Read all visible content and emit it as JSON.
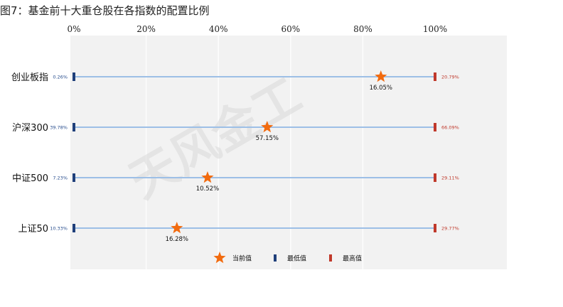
{
  "title": "图7：基金前十大重仓股在各指数的配置比例",
  "watermark": "天风金工",
  "chart_data": {
    "type": "range-dot",
    "x_axis": {
      "min": 0,
      "max": 100,
      "ticks": [
        0,
        20,
        40,
        60,
        80,
        100
      ],
      "tick_labels": [
        "0%",
        "20%",
        "40%",
        "60%",
        "80%",
        "100%"
      ],
      "position": "top",
      "grid": true
    },
    "categories": [
      "创业板指",
      "沪深300",
      "中证500",
      "上证50"
    ],
    "series": [
      {
        "name": "当前值",
        "marker": "star",
        "color": "#f26b0f",
        "values": [
          85,
          53.5,
          37,
          28.5
        ]
      },
      {
        "name": "最低值",
        "marker": "bar",
        "color": "#1f3f7a",
        "values": [
          0,
          0,
          0,
          0
        ]
      },
      {
        "name": "最高值",
        "marker": "bar",
        "color": "#c0392b",
        "values": [
          100,
          100,
          100,
          100
        ]
      }
    ],
    "current_labels": [
      "16.05%",
      "57.15%",
      "10.52%",
      "16.28%"
    ],
    "low_labels": [
      "0.26%",
      "39.78%",
      "7.23%",
      "10.33%"
    ],
    "high_labels": [
      "20.79%",
      "66.09%",
      "29.11%",
      "29.77%"
    ],
    "legend_position": "bottom"
  }
}
